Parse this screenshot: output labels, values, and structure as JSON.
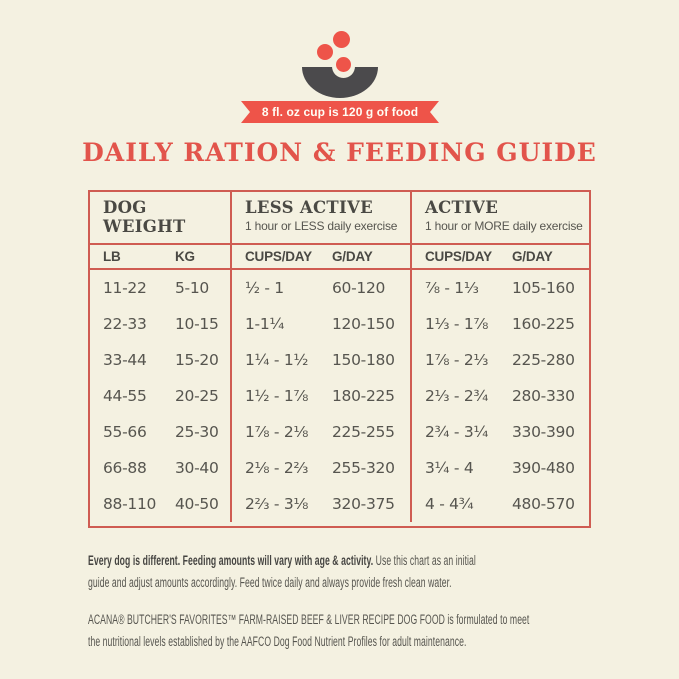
{
  "colors": {
    "background": "#f4f1e1",
    "accent_red": "#ee5449",
    "title_red": "#e2544b",
    "table_border": "#cf5c52",
    "bowl_gray": "#4b4a4c",
    "text_dark": "#56554f"
  },
  "header": {
    "badge": "8 fl. oz cup is 120 g of food",
    "title": "DAILY RATION & FEEDING GUIDE"
  },
  "table": {
    "groups": [
      {
        "title": "DOG WEIGHT",
        "subtitle": ""
      },
      {
        "title": "LESS ACTIVE",
        "subtitle": "1 hour or LESS daily exercise"
      },
      {
        "title": "ACTIVE",
        "subtitle": "1 hour or MORE daily exercise"
      }
    ],
    "columns": [
      "LB",
      "KG",
      "CUPS/DAY",
      "G/DAY",
      "CUPS/DAY",
      "G/DAY"
    ],
    "rows": [
      {
        "lb": "11-22",
        "kg": "5-10",
        "less_cups": "½ - 1",
        "less_g": "60-120",
        "active_cups": "⅞ - 1⅓",
        "active_g": "105-160"
      },
      {
        "lb": "22-33",
        "kg": "10-15",
        "less_cups": "1-1¼",
        "less_g": "120-150",
        "active_cups": "1⅓ - 1⅞",
        "active_g": "160-225"
      },
      {
        "lb": "33-44",
        "kg": "15-20",
        "less_cups": "1¼ - 1½",
        "less_g": "150-180",
        "active_cups": "1⅞ - 2⅓",
        "active_g": "225-280"
      },
      {
        "lb": "44-55",
        "kg": "20-25",
        "less_cups": "1½ - 1⅞",
        "less_g": "180-225",
        "active_cups": "2⅓ - 2¾",
        "active_g": "280-330"
      },
      {
        "lb": "55-66",
        "kg": "25-30",
        "less_cups": "1⅞ - 2⅛",
        "less_g": "225-255",
        "active_cups": "2¾ - 3¼",
        "active_g": "330-390"
      },
      {
        "lb": "66-88",
        "kg": "30-40",
        "less_cups": "2⅛ - 2⅔",
        "less_g": "255-320",
        "active_cups": "3¼ - 4",
        "active_g": "390-480"
      },
      {
        "lb": "88-110",
        "kg": "40-50",
        "less_cups": "2⅔ - 3⅛",
        "less_g": "320-375",
        "active_cups": "4 - 4¾",
        "active_g": "480-570"
      }
    ]
  },
  "footnotes": {
    "p1_bold": "Every dog is different. Feeding amounts will vary with age & activity.",
    "p1_rest": " Use this chart as an initial\nguide and adjust amounts accordingly. Feed twice daily and always provide fresh clean water.",
    "p2_caps": "ACANA® BUTCHER'S FAVORITES™ FARM-RAISED BEEF & LIVER RECIPE DOG FOOD",
    "p2_rest": " is formulated to meet\nthe nutritional levels established by the AAFCO Dog Food Nutrient Profiles for adult maintenance."
  }
}
